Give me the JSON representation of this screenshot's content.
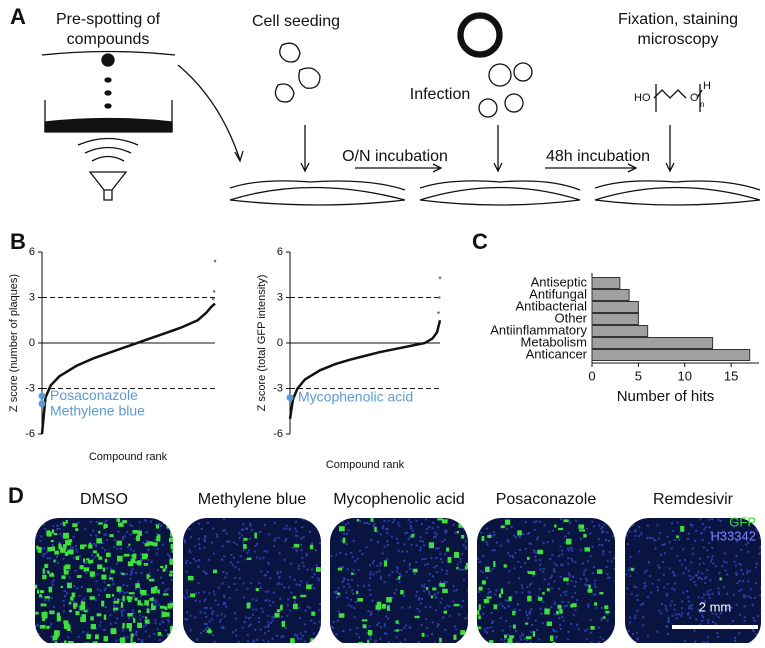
{
  "panel_labels": [
    "A",
    "B",
    "C",
    "D"
  ],
  "workflow": {
    "prespot": [
      "Pre-spotting of",
      "compounds"
    ],
    "seeding": "Cell seeding",
    "infection": "Infection",
    "incubation1": "O/N incubation",
    "incubation2": "48h incubation",
    "fixation": [
      "Fixation, staining",
      "microscopy"
    ],
    "formula": {
      "left": "HO",
      "bond": "O",
      "right": "H",
      "sub": "n"
    }
  },
  "chart_data": [
    {
      "type": "line",
      "ylabel": "Z score (number of plaques)",
      "xlabel": "Compound rank",
      "xlim": [
        0,
        100
      ],
      "ylim": [
        -6,
        6
      ],
      "yticks": [
        6,
        3,
        0,
        -3,
        -6
      ],
      "reference_lines": [
        {
          "value": 3,
          "style": "dashed"
        },
        {
          "value": 0,
          "style": "solid"
        },
        {
          "value": -3,
          "style": "dashed"
        }
      ],
      "series": [
        {
          "color": "#111111",
          "x": [
            0,
            2,
            5,
            10,
            20,
            30,
            40,
            50,
            60,
            70,
            80,
            90,
            95,
            98,
            100
          ],
          "values": [
            -6,
            -3.6,
            -2.8,
            -2.2,
            -1.5,
            -1,
            -0.6,
            -0.2,
            0.2,
            0.6,
            1,
            1.5,
            2,
            2.4,
            2.6
          ]
        }
      ],
      "outliers": {
        "color": "#777777",
        "x": [
          99,
          99.5,
          100
        ],
        "values": [
          2.9,
          3.4,
          5.4
        ]
      },
      "highlights": [
        {
          "label": "Posaconazole",
          "x": 0,
          "value": -3.5,
          "color": "#5b9bd5"
        },
        {
          "label": "Methylene blue",
          "x": 0,
          "value": -4,
          "color": "#5b9bd5"
        }
      ]
    },
    {
      "type": "line",
      "ylabel": "Z score (total GFP intensity)",
      "xlabel": "Compound rank",
      "xlim": [
        0,
        100
      ],
      "ylim": [
        -6,
        6
      ],
      "yticks": [
        6,
        3,
        0,
        -3,
        -6
      ],
      "reference_lines": [
        {
          "value": 3,
          "style": "dashed"
        },
        {
          "value": 0,
          "style": "solid"
        },
        {
          "value": -3,
          "style": "dashed"
        }
      ],
      "series": [
        {
          "color": "#111111",
          "x": [
            0,
            2,
            5,
            10,
            20,
            30,
            40,
            50,
            60,
            70,
            80,
            90,
            95,
            98,
            100
          ],
          "values": [
            -5,
            -3.7,
            -3,
            -2.4,
            -1.8,
            -1.4,
            -1.1,
            -0.85,
            -0.6,
            -0.4,
            -0.2,
            0,
            0.3,
            0.7,
            1.5
          ]
        }
      ],
      "outliers": {
        "color": "#777777",
        "x": [
          99,
          99.5,
          100
        ],
        "values": [
          2,
          3,
          4.3
        ]
      },
      "highlights": [
        {
          "label": "Mycophenolic acid",
          "x": 0,
          "value": -3.6,
          "color": "#5b9bd5"
        }
      ]
    },
    {
      "type": "hbar",
      "xlabel": "Number of hits",
      "categories": [
        "Antiseptic",
        "Antifungal",
        "Antibacterial",
        "Other",
        "Antiinflammatory",
        "Metabolism",
        "Anticancer"
      ],
      "values": [
        3,
        4,
        5,
        5,
        6,
        13,
        17
      ],
      "color": "#a0a0a0",
      "xlim": [
        0,
        18
      ],
      "xticks": [
        0,
        5,
        10,
        15
      ]
    }
  ],
  "images": {
    "labels": [
      "DMSO",
      "Methylene blue",
      "Mycophenolic acid",
      "Posaconazole",
      "Remdesivir"
    ],
    "channels": [
      {
        "label": "GFP",
        "color": "#33dd33"
      },
      {
        "label": "H33342",
        "color": "#8080ff"
      }
    ],
    "scale": "2 mm"
  }
}
